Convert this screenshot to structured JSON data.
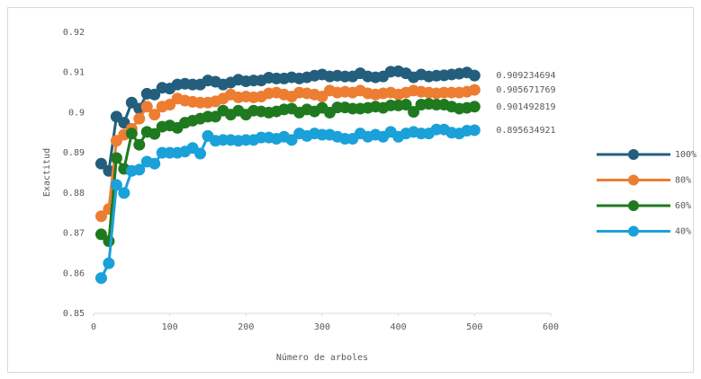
{
  "chart_data": {
    "type": "line",
    "x_label": "Número de arboles",
    "y_label": "Exactitud",
    "x": [
      10,
      20,
      30,
      40,
      50,
      60,
      70,
      80,
      90,
      100,
      110,
      120,
      130,
      140,
      150,
      160,
      170,
      180,
      190,
      200,
      210,
      220,
      230,
      240,
      250,
      260,
      270,
      280,
      290,
      300,
      310,
      320,
      330,
      340,
      350,
      360,
      370,
      380,
      390,
      400,
      410,
      420,
      430,
      440,
      450,
      460,
      470,
      480,
      490,
      500
    ],
    "series": [
      {
        "name": "100%",
        "color": "#245e7d",
        "values": [
          0.8873,
          0.8855,
          0.899,
          0.8975,
          0.9025,
          0.901,
          0.9047,
          0.9045,
          0.9062,
          0.906,
          0.907,
          0.9072,
          0.907,
          0.907,
          0.908,
          0.9077,
          0.907,
          0.9075,
          0.9082,
          0.9078,
          0.908,
          0.908,
          0.9087,
          0.9085,
          0.9085,
          0.9088,
          0.9085,
          0.9088,
          0.9092,
          0.9095,
          0.909,
          0.9092,
          0.909,
          0.909,
          0.9098,
          0.909,
          0.9088,
          0.909,
          0.9102,
          0.9103,
          0.9098,
          0.9088,
          0.9095,
          0.909,
          0.9092,
          0.9093,
          0.9095,
          0.9097,
          0.91,
          0.909234694
        ]
      },
      {
        "name": "80%",
        "color": "#ed7d31",
        "values": [
          0.8742,
          0.876,
          0.893,
          0.8945,
          0.896,
          0.8985,
          0.9015,
          0.8995,
          0.9015,
          0.902,
          0.9035,
          0.903,
          0.9027,
          0.9025,
          0.9025,
          0.9028,
          0.9035,
          0.9045,
          0.9038,
          0.904,
          0.9038,
          0.904,
          0.9048,
          0.905,
          0.9045,
          0.904,
          0.905,
          0.9048,
          0.9045,
          0.904,
          0.9055,
          0.905,
          0.9052,
          0.905,
          0.9055,
          0.9048,
          0.9045,
          0.9048,
          0.905,
          0.9045,
          0.905,
          0.9055,
          0.9052,
          0.905,
          0.9048,
          0.905,
          0.905,
          0.905,
          0.9052,
          0.905671769
        ]
      },
      {
        "name": "60%",
        "color": "#1f7a1f",
        "values": [
          0.8697,
          0.868,
          0.8887,
          0.886,
          0.8948,
          0.892,
          0.8952,
          0.8947,
          0.8965,
          0.8968,
          0.8962,
          0.8975,
          0.898,
          0.8985,
          0.899,
          0.899,
          0.9005,
          0.8995,
          0.9005,
          0.8995,
          0.9005,
          0.9003,
          0.9,
          0.9003,
          0.9008,
          0.901,
          0.9,
          0.9008,
          0.9003,
          0.9012,
          0.9,
          0.9013,
          0.9013,
          0.901,
          0.901,
          0.9012,
          0.9015,
          0.9012,
          0.9018,
          0.9018,
          0.902,
          0.9002,
          0.902,
          0.9022,
          0.902,
          0.902,
          0.9015,
          0.901,
          0.9012,
          0.901492819
        ]
      },
      {
        "name": "40%",
        "color": "#1ba1d9",
        "values": [
          0.8588,
          0.8625,
          0.882,
          0.88,
          0.8855,
          0.8858,
          0.8878,
          0.8873,
          0.89,
          0.89,
          0.89,
          0.8903,
          0.8912,
          0.8898,
          0.8942,
          0.893,
          0.8932,
          0.8932,
          0.893,
          0.8932,
          0.8932,
          0.8938,
          0.8938,
          0.8935,
          0.894,
          0.8932,
          0.8948,
          0.8942,
          0.8948,
          0.8945,
          0.8945,
          0.894,
          0.8935,
          0.8935,
          0.8948,
          0.894,
          0.8945,
          0.894,
          0.8952,
          0.894,
          0.8948,
          0.8952,
          0.8948,
          0.8948,
          0.8958,
          0.8958,
          0.895,
          0.8948,
          0.8955,
          0.895634921
        ]
      }
    ],
    "xlim": [
      0,
      600
    ],
    "xticks": [
      0,
      100,
      200,
      300,
      400,
      500,
      600
    ],
    "ylim": [
      0.85,
      0.92
    ],
    "yticks": [
      0.85,
      0.86,
      0.87,
      0.88,
      0.89,
      0.9,
      0.91,
      0.92
    ],
    "grid": false,
    "legend": "right",
    "end_labels": true
  }
}
